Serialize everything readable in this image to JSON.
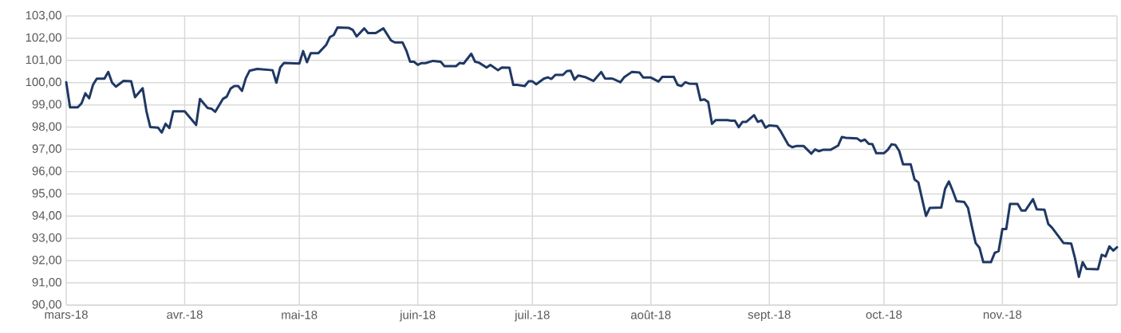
{
  "chart_data": {
    "type": "line",
    "color": "#1f3864",
    "grid": true,
    "marker": "none",
    "line_style": "solid",
    "xlim": [
      "2018-03-01",
      "2018-12-01"
    ],
    "xticks": [
      {
        "value": "2018-03-01",
        "label": "mars-18"
      },
      {
        "value": "2018-04-01",
        "label": "avr.-18"
      },
      {
        "value": "2018-05-01",
        "label": "mai-18"
      },
      {
        "value": "2018-06-01",
        "label": "juin-18"
      },
      {
        "value": "2018-07-01",
        "label": "juil.-18"
      },
      {
        "value": "2018-08-01",
        "label": "août-18"
      },
      {
        "value": "2018-09-01",
        "label": "sept.-18"
      },
      {
        "value": "2018-10-01",
        "label": "oct.-18"
      },
      {
        "value": "2018-11-01",
        "label": "nov.-18"
      }
    ],
    "ylim": [
      90,
      103
    ],
    "yticks": [
      {
        "value": 90,
        "label": "90,00"
      },
      {
        "value": 91,
        "label": "91,00"
      },
      {
        "value": 92,
        "label": "92,00"
      },
      {
        "value": 93,
        "label": "93,00"
      },
      {
        "value": 94,
        "label": "94,00"
      },
      {
        "value": 95,
        "label": "95,00"
      },
      {
        "value": 96,
        "label": "96,00"
      },
      {
        "value": 97,
        "label": "97,00"
      },
      {
        "value": 98,
        "label": "98,00"
      },
      {
        "value": 99,
        "label": "99,00"
      },
      {
        "value": 100,
        "label": "100,00"
      },
      {
        "value": 101,
        "label": "101,00"
      },
      {
        "value": 102,
        "label": "102,00"
      },
      {
        "value": 103,
        "label": "103,00"
      }
    ],
    "x": [
      "2018-03-01",
      "2018-03-02",
      "2018-03-04",
      "2018-03-05",
      "2018-03-06",
      "2018-03-07",
      "2018-03-08",
      "2018-03-09",
      "2018-03-11",
      "2018-03-12",
      "2018-03-13",
      "2018-03-14",
      "2018-03-16",
      "2018-03-18",
      "2018-03-19",
      "2018-03-21",
      "2018-03-22",
      "2018-03-23",
      "2018-03-25",
      "2018-03-26",
      "2018-03-27",
      "2018-03-28",
      "2018-03-29",
      "2018-04-01",
      "2018-04-04",
      "2018-04-05",
      "2018-04-07",
      "2018-04-08",
      "2018-04-09",
      "2018-04-11",
      "2018-04-12",
      "2018-04-13",
      "2018-04-14",
      "2018-04-15",
      "2018-04-16",
      "2018-04-17",
      "2018-04-18",
      "2018-04-20",
      "2018-04-24",
      "2018-04-25",
      "2018-04-26",
      "2018-04-27",
      "2018-05-01",
      "2018-05-02",
      "2018-05-03",
      "2018-05-04",
      "2018-05-06",
      "2018-05-08",
      "2018-05-09",
      "2018-05-10",
      "2018-05-11",
      "2018-05-14",
      "2018-05-15",
      "2018-05-16",
      "2018-05-18",
      "2018-05-19",
      "2018-05-21",
      "2018-05-23",
      "2018-05-25",
      "2018-05-26",
      "2018-05-28",
      "2018-05-29",
      "2018-05-30",
      "2018-05-31",
      "2018-06-01",
      "2018-06-02",
      "2018-06-03",
      "2018-06-05",
      "2018-06-07",
      "2018-06-08",
      "2018-06-11",
      "2018-06-12",
      "2018-06-13",
      "2018-06-15",
      "2018-06-16",
      "2018-06-17",
      "2018-06-19",
      "2018-06-20",
      "2018-06-22",
      "2018-06-23",
      "2018-06-25",
      "2018-06-26",
      "2018-06-27",
      "2018-06-29",
      "2018-06-30",
      "2018-07-01",
      "2018-07-02",
      "2018-07-04",
      "2018-07-05",
      "2018-07-06",
      "2018-07-07",
      "2018-07-09",
      "2018-07-10",
      "2018-07-11",
      "2018-07-12",
      "2018-07-13",
      "2018-07-15",
      "2018-07-17",
      "2018-07-19",
      "2018-07-20",
      "2018-07-22",
      "2018-07-24",
      "2018-07-25",
      "2018-07-27",
      "2018-07-29",
      "2018-07-30",
      "2018-08-01",
      "2018-08-03",
      "2018-08-04",
      "2018-08-07",
      "2018-08-08",
      "2018-08-09",
      "2018-08-10",
      "2018-08-11",
      "2018-08-13",
      "2018-08-14",
      "2018-08-15",
      "2018-08-16",
      "2018-08-17",
      "2018-08-18",
      "2018-08-21",
      "2018-08-22",
      "2018-08-23",
      "2018-08-24",
      "2018-08-25",
      "2018-08-26",
      "2018-08-28",
      "2018-08-29",
      "2018-08-30",
      "2018-08-31",
      "2018-09-01",
      "2018-09-03",
      "2018-09-04",
      "2018-09-06",
      "2018-09-07",
      "2018-09-08",
      "2018-09-10",
      "2018-09-12",
      "2018-09-13",
      "2018-09-14",
      "2018-09-15",
      "2018-09-17",
      "2018-09-19",
      "2018-09-20",
      "2018-09-21",
      "2018-09-24",
      "2018-09-25",
      "2018-09-26",
      "2018-09-27",
      "2018-09-28",
      "2018-09-29",
      "2018-10-01",
      "2018-10-02",
      "2018-10-03",
      "2018-10-04",
      "2018-10-05",
      "2018-10-06",
      "2018-10-08",
      "2018-10-09",
      "2018-10-10",
      "2018-10-12",
      "2018-10-13",
      "2018-10-16",
      "2018-10-17",
      "2018-10-18",
      "2018-10-19",
      "2018-10-20",
      "2018-10-22",
      "2018-10-23",
      "2018-10-24",
      "2018-10-25",
      "2018-10-26",
      "2018-10-27",
      "2018-10-29",
      "2018-10-30",
      "2018-10-31",
      "2018-11-01",
      "2018-11-02",
      "2018-11-03",
      "2018-11-05",
      "2018-11-06",
      "2018-11-07",
      "2018-11-09",
      "2018-11-10",
      "2018-11-12",
      "2018-11-13",
      "2018-11-14",
      "2018-11-16",
      "2018-11-17",
      "2018-11-19",
      "2018-11-20",
      "2018-11-21",
      "2018-11-22",
      "2018-11-23",
      "2018-11-26",
      "2018-11-27",
      "2018-11-28",
      "2018-11-29",
      "2018-11-30",
      "2018-12-01"
    ],
    "values": [
      100.02,
      98.89,
      98.89,
      99.07,
      99.52,
      99.3,
      99.9,
      100.18,
      100.18,
      100.48,
      100.0,
      99.82,
      100.08,
      100.06,
      99.35,
      99.75,
      98.71,
      98.0,
      97.98,
      97.76,
      98.15,
      97.96,
      98.71,
      98.71,
      98.1,
      99.27,
      98.86,
      98.83,
      98.69,
      99.27,
      99.37,
      99.73,
      99.85,
      99.85,
      99.63,
      100.2,
      100.54,
      100.62,
      100.56,
      100.0,
      100.68,
      100.89,
      100.86,
      101.42,
      100.92,
      101.33,
      101.33,
      101.69,
      102.05,
      102.14,
      102.48,
      102.46,
      102.37,
      102.08,
      102.44,
      102.23,
      102.23,
      102.44,
      101.9,
      101.81,
      101.81,
      101.45,
      100.94,
      100.94,
      100.8,
      100.88,
      100.88,
      100.98,
      100.94,
      100.74,
      100.74,
      100.89,
      100.86,
      101.3,
      100.94,
      100.9,
      100.68,
      100.8,
      100.56,
      100.68,
      100.67,
      99.9,
      99.9,
      99.85,
      100.06,
      100.06,
      99.93,
      100.18,
      100.24,
      100.17,
      100.35,
      100.35,
      100.52,
      100.54,
      100.14,
      100.32,
      100.24,
      100.08,
      100.48,
      100.19,
      100.18,
      100.02,
      100.24,
      100.48,
      100.46,
      100.23,
      100.23,
      100.05,
      100.26,
      100.26,
      99.9,
      99.85,
      100.02,
      99.96,
      99.95,
      99.21,
      99.25,
      99.13,
      98.15,
      98.32,
      98.32,
      98.29,
      98.29,
      98.0,
      98.24,
      98.24,
      98.54,
      98.24,
      98.3,
      97.98,
      98.08,
      98.05,
      97.81,
      97.2,
      97.1,
      97.15,
      97.15,
      96.81,
      97.0,
      96.92,
      96.98,
      96.98,
      97.17,
      97.56,
      97.52,
      97.49,
      97.37,
      97.44,
      97.25,
      97.23,
      96.83,
      96.83,
      96.98,
      97.23,
      97.2,
      96.93,
      96.33,
      96.33,
      95.65,
      95.52,
      94.01,
      94.37,
      94.39,
      95.23,
      95.56,
      95.14,
      94.67,
      94.64,
      94.37,
      93.54,
      92.79,
      92.58,
      91.93,
      91.93,
      92.35,
      92.43,
      93.42,
      93.42,
      94.55,
      94.55,
      94.25,
      94.25,
      94.76,
      94.31,
      94.29,
      93.65,
      93.48,
      93.02,
      92.79,
      92.77,
      92.11,
      91.27,
      91.93,
      91.63,
      91.61,
      92.26,
      92.19,
      92.64,
      92.45,
      92.6
    ]
  }
}
